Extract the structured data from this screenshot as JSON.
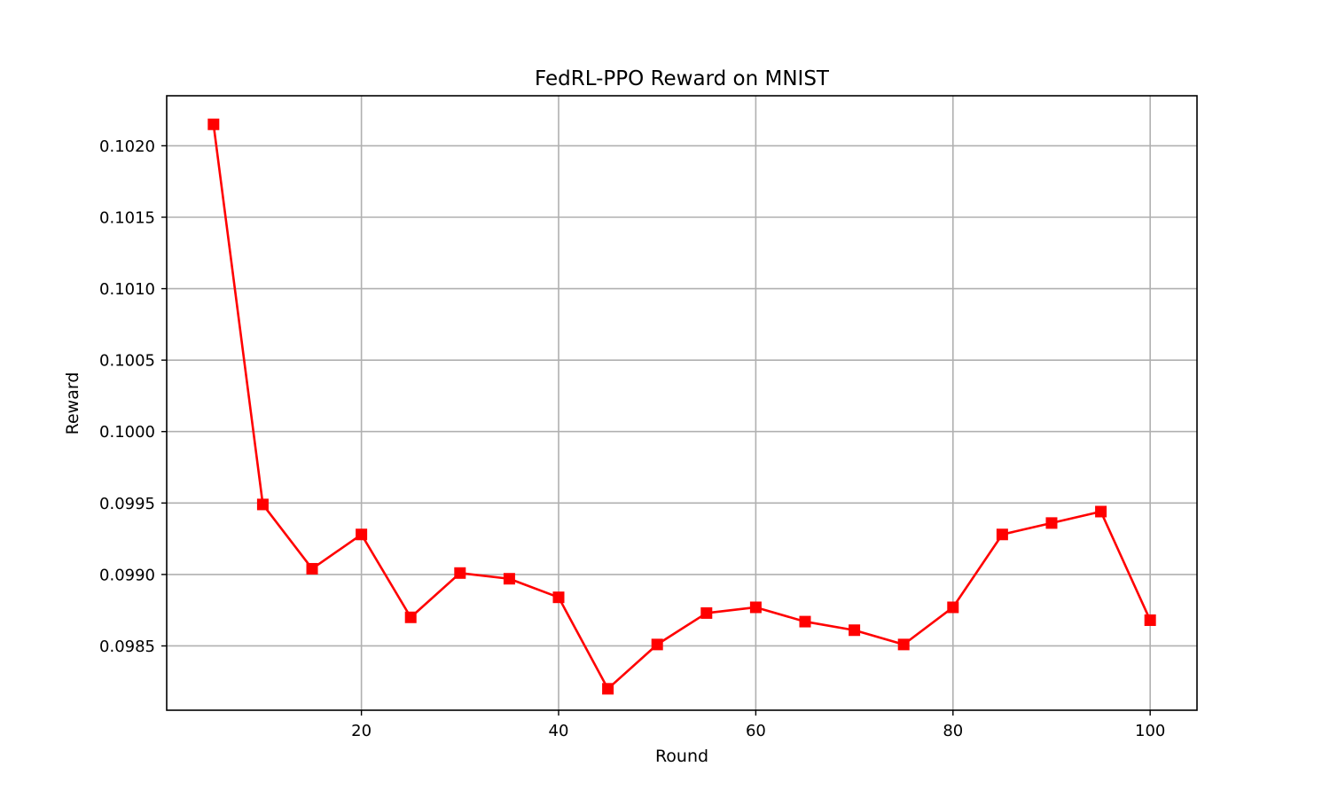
{
  "chart_data": {
    "type": "line",
    "title": "FedRL-PPO Reward on MNIST",
    "xlabel": "Round",
    "ylabel": "Reward",
    "xlim": [
      0.25,
      104.75
    ],
    "ylim": [
      0.09805,
      0.10235
    ],
    "xticks": [
      20,
      40,
      60,
      80,
      100
    ],
    "xtick_labels": [
      "20",
      "40",
      "60",
      "80",
      "100"
    ],
    "yticks": [
      0.0985,
      0.099,
      0.0995,
      0.1,
      0.1005,
      0.101,
      0.1015,
      0.102
    ],
    "ytick_labels": [
      "0.0985",
      "0.0990",
      "0.0995",
      "0.1000",
      "0.1005",
      "0.1010",
      "0.1015",
      "0.1020"
    ],
    "grid": true,
    "marker": "square",
    "x": [
      5,
      10,
      15,
      20,
      25,
      30,
      35,
      40,
      45,
      50,
      55,
      60,
      65,
      70,
      75,
      80,
      85,
      90,
      95,
      100
    ],
    "series": [
      {
        "values": [
          0.10215,
          0.09949,
          0.09904,
          0.09928,
          0.0987,
          0.09901,
          0.09897,
          0.09884,
          0.0982,
          0.09851,
          0.09873,
          0.09877,
          0.09867,
          0.09861,
          0.09851,
          0.09877,
          0.09928,
          0.09936,
          0.09944,
          0.09868
        ],
        "color": "#ff0000"
      }
    ]
  }
}
